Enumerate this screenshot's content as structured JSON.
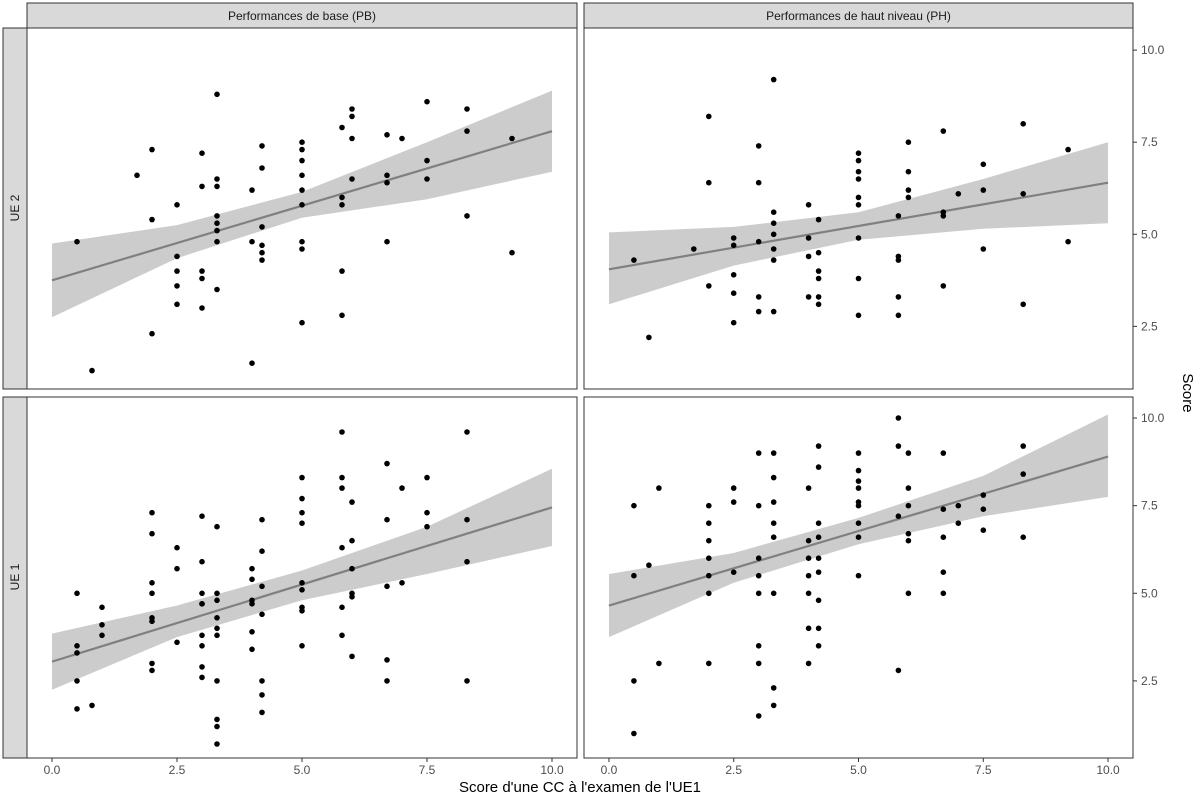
{
  "figure": {
    "xlabel": "Score d'une CC à l'examen de l'UE1",
    "ylabel": "Score"
  },
  "colors": {
    "strip_fill": "#d9d9d9",
    "panel_border": "#333333",
    "points": "#000000",
    "ribbon": "#cccccc",
    "line": "#808080"
  },
  "chart_data": [
    {
      "type": "scatter",
      "facet_col": "Performances de base (PB)",
      "facet_row": "UE 2",
      "xlim": [
        -0.5,
        10.5
      ],
      "ylim": [
        0.8,
        10.6
      ],
      "xticks": [
        "0.0",
        "2.5",
        "5.0",
        "7.5",
        "10.0"
      ],
      "yticks": [
        "2.5",
        "5.0",
        "7.5",
        "10.0"
      ],
      "points": [
        [
          0.5,
          4.8
        ],
        [
          0.8,
          1.3
        ],
        [
          1.7,
          6.6
        ],
        [
          2.0,
          7.3
        ],
        [
          2.0,
          5.4
        ],
        [
          2.0,
          2.3
        ],
        [
          2.5,
          5.8
        ],
        [
          2.5,
          4.4
        ],
        [
          2.5,
          4.0
        ],
        [
          2.5,
          3.6
        ],
        [
          2.5,
          3.1
        ],
        [
          3.0,
          7.2
        ],
        [
          3.0,
          6.3
        ],
        [
          3.0,
          4.0
        ],
        [
          3.0,
          3.8
        ],
        [
          3.0,
          3.0
        ],
        [
          3.3,
          8.8
        ],
        [
          3.3,
          6.5
        ],
        [
          3.3,
          6.3
        ],
        [
          3.3,
          5.5
        ],
        [
          3.3,
          5.3
        ],
        [
          3.3,
          5.1
        ],
        [
          3.3,
          4.8
        ],
        [
          3.3,
          3.5
        ],
        [
          4.0,
          6.2
        ],
        [
          4.0,
          4.8
        ],
        [
          4.0,
          1.5
        ],
        [
          4.2,
          7.4
        ],
        [
          4.2,
          6.8
        ],
        [
          4.2,
          5.2
        ],
        [
          4.2,
          4.7
        ],
        [
          4.2,
          4.5
        ],
        [
          4.2,
          4.3
        ],
        [
          5.0,
          7.5
        ],
        [
          5.0,
          7.3
        ],
        [
          5.0,
          7.0
        ],
        [
          5.0,
          6.6
        ],
        [
          5.0,
          6.2
        ],
        [
          5.0,
          5.8
        ],
        [
          5.0,
          4.8
        ],
        [
          5.0,
          4.6
        ],
        [
          5.0,
          2.6
        ],
        [
          5.8,
          7.9
        ],
        [
          5.8,
          6.0
        ],
        [
          5.8,
          5.8
        ],
        [
          5.8,
          4.0
        ],
        [
          5.8,
          2.8
        ],
        [
          6.0,
          8.4
        ],
        [
          6.0,
          8.2
        ],
        [
          6.0,
          7.6
        ],
        [
          6.0,
          6.5
        ],
        [
          6.7,
          7.7
        ],
        [
          6.7,
          6.6
        ],
        [
          6.7,
          6.4
        ],
        [
          6.7,
          4.8
        ],
        [
          7.0,
          7.6
        ],
        [
          7.5,
          8.6
        ],
        [
          7.5,
          7.0
        ],
        [
          7.5,
          6.5
        ],
        [
          8.3,
          8.4
        ],
        [
          8.3,
          7.8
        ],
        [
          8.3,
          5.5
        ],
        [
          9.2,
          7.6
        ],
        [
          9.2,
          4.5
        ]
      ],
      "fit": {
        "x": [
          0.0,
          10.0
        ],
        "y": [
          3.75,
          7.8
        ]
      },
      "ci": {
        "x": [
          0.0,
          2.5,
          5.0,
          7.5,
          10.0
        ],
        "lower": [
          2.75,
          4.35,
          5.45,
          5.95,
          6.7
        ],
        "upper": [
          4.75,
          5.25,
          6.15,
          7.5,
          8.9
        ]
      }
    },
    {
      "type": "scatter",
      "facet_col": "Performances de haut niveau (PH)",
      "facet_row": "UE 2",
      "xlim": [
        -0.5,
        10.5
      ],
      "ylim": [
        0.8,
        10.6
      ],
      "xticks": [
        "0.0",
        "2.5",
        "5.0",
        "7.5",
        "10.0"
      ],
      "yticks": [
        "2.5",
        "5.0",
        "7.5",
        "10.0"
      ],
      "points": [
        [
          0.5,
          4.3
        ],
        [
          0.8,
          2.2
        ],
        [
          1.7,
          4.6
        ],
        [
          2.0,
          8.2
        ],
        [
          2.0,
          6.4
        ],
        [
          2.0,
          3.6
        ],
        [
          2.5,
          4.9
        ],
        [
          2.5,
          4.7
        ],
        [
          2.5,
          3.9
        ],
        [
          2.5,
          3.4
        ],
        [
          2.5,
          2.6
        ],
        [
          3.0,
          7.4
        ],
        [
          3.0,
          6.4
        ],
        [
          3.0,
          4.8
        ],
        [
          3.0,
          3.3
        ],
        [
          3.0,
          2.9
        ],
        [
          3.3,
          9.2
        ],
        [
          3.3,
          5.6
        ],
        [
          3.3,
          5.3
        ],
        [
          3.3,
          5.0
        ],
        [
          3.3,
          4.6
        ],
        [
          3.3,
          4.3
        ],
        [
          3.3,
          2.9
        ],
        [
          4.0,
          5.8
        ],
        [
          4.0,
          4.9
        ],
        [
          4.0,
          4.4
        ],
        [
          4.0,
          3.3
        ],
        [
          4.2,
          5.4
        ],
        [
          4.2,
          4.5
        ],
        [
          4.2,
          4.0
        ],
        [
          4.2,
          3.8
        ],
        [
          4.2,
          3.3
        ],
        [
          4.2,
          3.1
        ],
        [
          5.0,
          7.2
        ],
        [
          5.0,
          7.0
        ],
        [
          5.0,
          6.7
        ],
        [
          5.0,
          6.5
        ],
        [
          5.0,
          6.0
        ],
        [
          5.0,
          5.8
        ],
        [
          5.0,
          4.9
        ],
        [
          5.0,
          3.8
        ],
        [
          5.0,
          2.8
        ],
        [
          5.8,
          5.5
        ],
        [
          5.8,
          4.4
        ],
        [
          5.8,
          4.3
        ],
        [
          5.8,
          3.3
        ],
        [
          5.8,
          2.8
        ],
        [
          6.0,
          7.5
        ],
        [
          6.0,
          6.7
        ],
        [
          6.0,
          6.2
        ],
        [
          6.0,
          6.0
        ],
        [
          6.7,
          7.8
        ],
        [
          6.7,
          5.6
        ],
        [
          6.7,
          5.5
        ],
        [
          6.7,
          3.6
        ],
        [
          7.0,
          6.1
        ],
        [
          7.5,
          6.9
        ],
        [
          7.5,
          6.2
        ],
        [
          7.5,
          4.6
        ],
        [
          8.3,
          8.0
        ],
        [
          8.3,
          6.1
        ],
        [
          8.3,
          3.1
        ],
        [
          9.2,
          7.3
        ],
        [
          9.2,
          4.8
        ]
      ],
      "fit": {
        "x": [
          0.0,
          10.0
        ],
        "y": [
          4.05,
          6.4
        ]
      },
      "ci": {
        "x": [
          0.0,
          2.5,
          5.0,
          7.5,
          10.0
        ],
        "lower": [
          3.1,
          4.15,
          4.85,
          5.15,
          5.3
        ],
        "upper": [
          5.05,
          5.2,
          5.6,
          6.5,
          7.5
        ]
      }
    },
    {
      "type": "scatter",
      "facet_col": "Performances de base (PB)",
      "facet_row": "UE 1",
      "xlim": [
        -0.5,
        10.5
      ],
      "ylim": [
        0.3,
        10.6
      ],
      "xticks": [
        "0.0",
        "2.5",
        "5.0",
        "7.5",
        "10.0"
      ],
      "yticks": [
        "2.5",
        "5.0",
        "7.5",
        "10.0"
      ],
      "points": [
        [
          0.5,
          5.0
        ],
        [
          0.5,
          3.5
        ],
        [
          0.5,
          3.3
        ],
        [
          0.5,
          2.5
        ],
        [
          0.5,
          1.7
        ],
        [
          0.8,
          1.8
        ],
        [
          1.0,
          4.6
        ],
        [
          1.0,
          4.1
        ],
        [
          1.0,
          3.8
        ],
        [
          2.0,
          7.3
        ],
        [
          2.0,
          6.7
        ],
        [
          2.0,
          5.3
        ],
        [
          2.0,
          5.0
        ],
        [
          2.0,
          4.3
        ],
        [
          2.0,
          4.2
        ],
        [
          2.0,
          3.0
        ],
        [
          2.0,
          2.8
        ],
        [
          2.5,
          6.3
        ],
        [
          2.5,
          5.7
        ],
        [
          2.5,
          3.6
        ],
        [
          3.0,
          7.2
        ],
        [
          3.0,
          5.9
        ],
        [
          3.0,
          5.0
        ],
        [
          3.0,
          4.7
        ],
        [
          3.0,
          4.7
        ],
        [
          3.0,
          3.8
        ],
        [
          3.0,
          3.5
        ],
        [
          3.0,
          2.9
        ],
        [
          3.0,
          2.6
        ],
        [
          3.3,
          6.9
        ],
        [
          3.3,
          5.0
        ],
        [
          3.3,
          4.8
        ],
        [
          3.3,
          4.3
        ],
        [
          3.3,
          4.0
        ],
        [
          3.3,
          3.8
        ],
        [
          3.3,
          2.5
        ],
        [
          3.3,
          1.4
        ],
        [
          3.3,
          1.2
        ],
        [
          3.3,
          0.7
        ],
        [
          4.0,
          5.7
        ],
        [
          4.0,
          5.4
        ],
        [
          4.0,
          4.8
        ],
        [
          4.0,
          4.7
        ],
        [
          4.0,
          3.9
        ],
        [
          4.0,
          3.4
        ],
        [
          4.2,
          7.1
        ],
        [
          4.2,
          6.2
        ],
        [
          4.2,
          5.2
        ],
        [
          4.2,
          4.4
        ],
        [
          4.2,
          2.5
        ],
        [
          4.2,
          2.1
        ],
        [
          4.2,
          1.6
        ],
        [
          5.0,
          8.3
        ],
        [
          5.0,
          7.7
        ],
        [
          5.0,
          7.3
        ],
        [
          5.0,
          7.0
        ],
        [
          5.0,
          5.3
        ],
        [
          5.0,
          5.1
        ],
        [
          5.0,
          4.6
        ],
        [
          5.0,
          4.5
        ],
        [
          5.0,
          3.5
        ],
        [
          5.8,
          9.6
        ],
        [
          5.8,
          8.3
        ],
        [
          5.8,
          8.0
        ],
        [
          5.8,
          6.3
        ],
        [
          5.8,
          4.6
        ],
        [
          5.8,
          3.8
        ],
        [
          6.0,
          7.6
        ],
        [
          6.0,
          6.5
        ],
        [
          6.0,
          5.7
        ],
        [
          6.0,
          5.0
        ],
        [
          6.0,
          4.9
        ],
        [
          6.0,
          3.2
        ],
        [
          6.7,
          8.7
        ],
        [
          6.7,
          7.1
        ],
        [
          6.7,
          5.2
        ],
        [
          6.7,
          3.1
        ],
        [
          6.7,
          2.5
        ],
        [
          7.0,
          8.0
        ],
        [
          7.0,
          5.3
        ],
        [
          7.5,
          8.3
        ],
        [
          7.5,
          7.3
        ],
        [
          7.5,
          6.9
        ],
        [
          8.3,
          9.6
        ],
        [
          8.3,
          7.1
        ],
        [
          8.3,
          5.9
        ],
        [
          8.3,
          2.5
        ]
      ],
      "fit": {
        "x": [
          0.0,
          10.0
        ],
        "y": [
          3.05,
          7.45
        ]
      },
      "ci": {
        "x": [
          0.0,
          2.5,
          5.0,
          7.5,
          10.0
        ],
        "lower": [
          2.25,
          3.75,
          4.8,
          5.55,
          6.35
        ],
        "upper": [
          3.85,
          4.65,
          5.65,
          6.9,
          8.55
        ]
      }
    },
    {
      "type": "scatter",
      "facet_col": "Performances de haut niveau (PH)",
      "facet_row": "UE 1",
      "xlim": [
        -0.5,
        10.5
      ],
      "ylim": [
        0.3,
        10.6
      ],
      "xticks": [
        "0.0",
        "2.5",
        "5.0",
        "7.5",
        "10.0"
      ],
      "yticks": [
        "2.5",
        "5.0",
        "7.5",
        "10.0"
      ],
      "points": [
        [
          0.5,
          7.5
        ],
        [
          0.5,
          5.5
        ],
        [
          0.5,
          2.5
        ],
        [
          0.5,
          1.0
        ],
        [
          0.8,
          5.8
        ],
        [
          1.0,
          8.0
        ],
        [
          1.0,
          3.0
        ],
        [
          2.0,
          7.5
        ],
        [
          2.0,
          7.0
        ],
        [
          2.0,
          6.5
        ],
        [
          2.0,
          6.0
        ],
        [
          2.0,
          5.5
        ],
        [
          2.0,
          5.0
        ],
        [
          2.0,
          3.0
        ],
        [
          2.5,
          8.0
        ],
        [
          2.5,
          7.6
        ],
        [
          2.5,
          5.6
        ],
        [
          3.0,
          9.0
        ],
        [
          3.0,
          7.5
        ],
        [
          3.0,
          6.0
        ],
        [
          3.0,
          5.5
        ],
        [
          3.0,
          5.0
        ],
        [
          3.0,
          3.5
        ],
        [
          3.0,
          3.0
        ],
        [
          3.0,
          1.5
        ],
        [
          3.3,
          9.0
        ],
        [
          3.3,
          8.3
        ],
        [
          3.3,
          7.6
        ],
        [
          3.3,
          7.0
        ],
        [
          3.3,
          6.6
        ],
        [
          3.3,
          5.0
        ],
        [
          3.3,
          2.3
        ],
        [
          3.3,
          1.8
        ],
        [
          4.0,
          8.0
        ],
        [
          4.0,
          6.5
        ],
        [
          4.0,
          6.0
        ],
        [
          4.0,
          5.5
        ],
        [
          4.0,
          5.0
        ],
        [
          4.0,
          4.0
        ],
        [
          4.0,
          3.0
        ],
        [
          4.2,
          9.2
        ],
        [
          4.2,
          8.6
        ],
        [
          4.2,
          7.0
        ],
        [
          4.2,
          6.6
        ],
        [
          4.2,
          6.0
        ],
        [
          4.2,
          5.6
        ],
        [
          4.2,
          4.8
        ],
        [
          4.2,
          4.0
        ],
        [
          4.2,
          3.5
        ],
        [
          5.0,
          9.0
        ],
        [
          5.0,
          8.5
        ],
        [
          5.0,
          8.2
        ],
        [
          5.0,
          8.0
        ],
        [
          5.0,
          7.6
        ],
        [
          5.0,
          7.5
        ],
        [
          5.0,
          7.0
        ],
        [
          5.0,
          6.6
        ],
        [
          5.0,
          5.5
        ],
        [
          5.8,
          10.0
        ],
        [
          5.8,
          9.2
        ],
        [
          5.8,
          7.2
        ],
        [
          5.8,
          2.8
        ],
        [
          6.0,
          9.0
        ],
        [
          6.0,
          8.0
        ],
        [
          6.0,
          7.5
        ],
        [
          6.0,
          6.7
        ],
        [
          6.0,
          6.5
        ],
        [
          6.0,
          5.0
        ],
        [
          6.7,
          9.0
        ],
        [
          6.7,
          7.4
        ],
        [
          6.7,
          6.6
        ],
        [
          6.7,
          5.6
        ],
        [
          6.7,
          5.0
        ],
        [
          7.0,
          7.5
        ],
        [
          7.0,
          7.0
        ],
        [
          7.5,
          7.8
        ],
        [
          7.5,
          7.4
        ],
        [
          7.5,
          6.8
        ],
        [
          8.3,
          9.2
        ],
        [
          8.3,
          8.4
        ],
        [
          8.3,
          6.6
        ]
      ],
      "fit": {
        "x": [
          0.0,
          10.0
        ],
        "y": [
          4.65,
          8.9
        ]
      },
      "ci": {
        "x": [
          0.0,
          2.5,
          5.0,
          7.5,
          10.0
        ],
        "lower": [
          3.75,
          5.3,
          6.4,
          7.2,
          7.75
        ],
        "upper": [
          5.55,
          6.15,
          7.15,
          8.35,
          10.1
        ]
      }
    }
  ]
}
